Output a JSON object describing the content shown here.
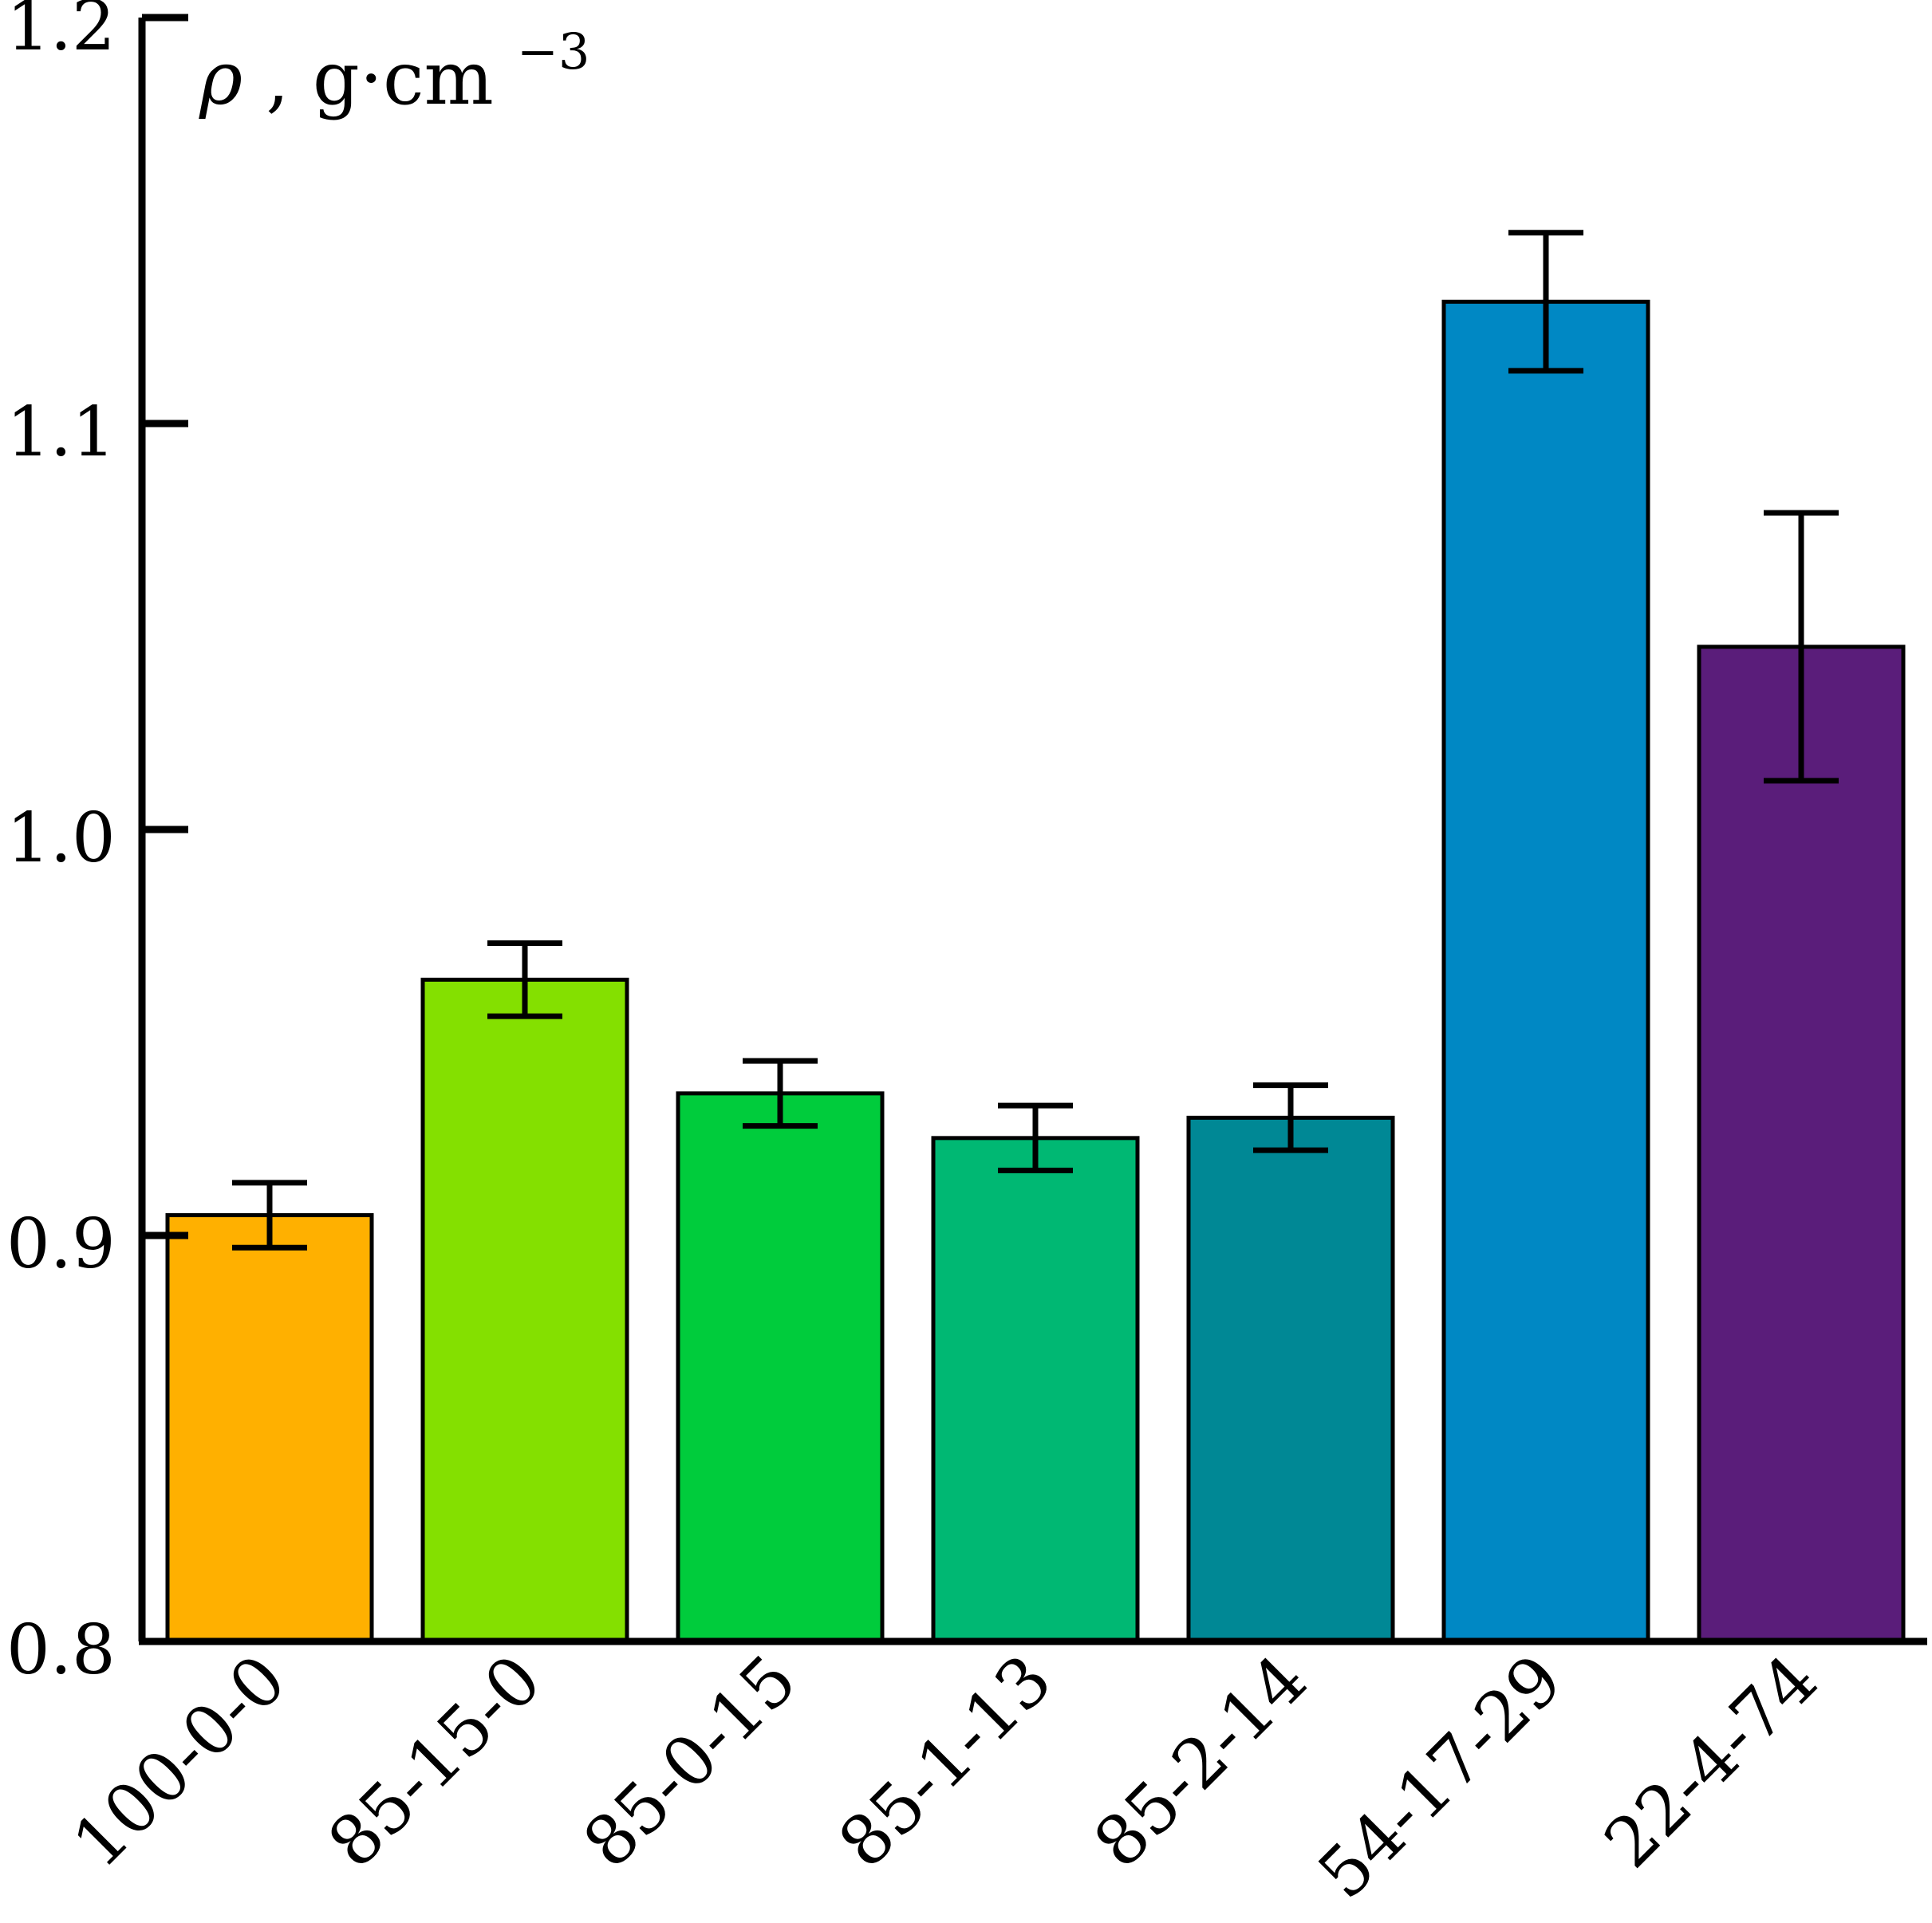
{
  "chart_data": {
    "type": "bar",
    "title": "",
    "xlabel": "",
    "ylabel": {
      "symbol": "ρ",
      "unit": "g·cm",
      "exponent": "−3"
    },
    "ylim": [
      0.8,
      1.2
    ],
    "yticks": [
      "0.8",
      "0.9",
      "1.0",
      "1.1",
      "1.2"
    ],
    "grid": false,
    "categories": [
      "100-0-0",
      "85-15-0",
      "85-0-15",
      "85-1-13",
      "85-2-14",
      "54-17-29",
      "22-4-74"
    ],
    "values": [
      0.905,
      0.963,
      0.935,
      0.924,
      0.929,
      1.13,
      1.045
    ],
    "errors": [
      0.008,
      0.009,
      0.008,
      0.008,
      0.008,
      0.017,
      0.033
    ],
    "colors": [
      "#FFB000",
      "#84E000",
      "#00CC3C",
      "#00B873",
      "#008895",
      "#0088C4",
      "#5A1D7A"
    ]
  }
}
